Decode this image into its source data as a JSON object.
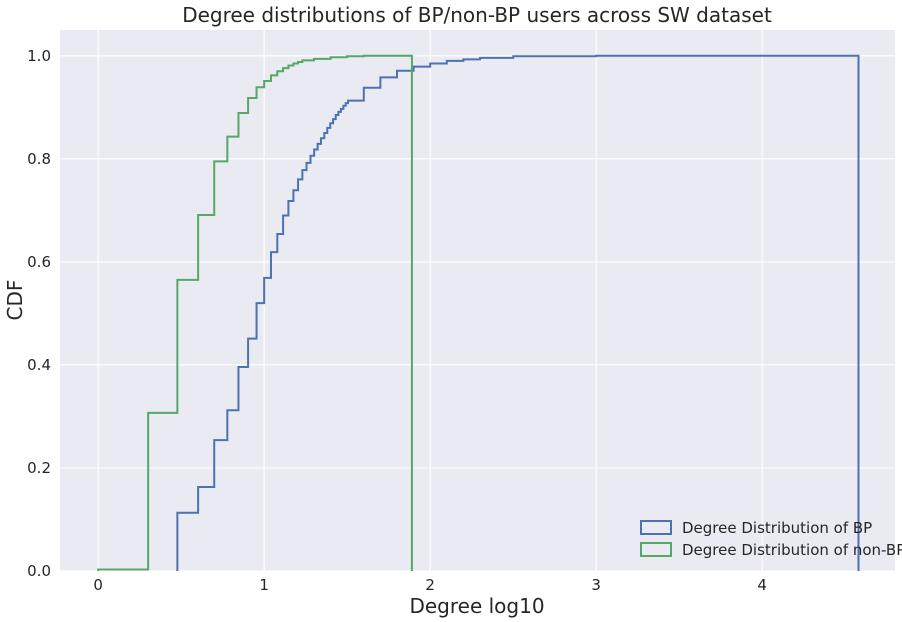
{
  "chart_data": {
    "type": "line",
    "title": "Degree distributions of BP/non-BP users across SW dataset",
    "xlabel": "Degree log10",
    "ylabel": "CDF",
    "xlim": [
      -0.23,
      4.8
    ],
    "ylim": [
      0,
      1.05
    ],
    "xticks": [
      0,
      1,
      2,
      3,
      4
    ],
    "yticks": [
      0.0,
      0.2,
      0.4,
      0.6,
      0.8,
      1.0
    ],
    "grid": true,
    "legend_position": "lower-right",
    "style": "step-histogram-cumulative",
    "series": [
      {
        "name": "Degree Distribution of BP",
        "color": "#4c72b0",
        "x": [
          0.477,
          0.602,
          0.699,
          0.778,
          0.845,
          0.903,
          0.954,
          1.0,
          1.041,
          1.079,
          1.114,
          1.146,
          1.176,
          1.204,
          1.23,
          1.255,
          1.279,
          1.301,
          1.322,
          1.342,
          1.362,
          1.38,
          1.398,
          1.415,
          1.431,
          1.447,
          1.462,
          1.477,
          1.491,
          1.505,
          1.6,
          1.7,
          1.8,
          1.9,
          2.0,
          2.1,
          2.2,
          2.3,
          2.5,
          3.0,
          4.58
        ],
        "y": [
          0.113,
          0.163,
          0.254,
          0.312,
          0.396,
          0.451,
          0.52,
          0.569,
          0.619,
          0.654,
          0.69,
          0.718,
          0.739,
          0.76,
          0.778,
          0.792,
          0.806,
          0.818,
          0.829,
          0.84,
          0.85,
          0.86,
          0.869,
          0.877,
          0.885,
          0.891,
          0.897,
          0.903,
          0.908,
          0.913,
          0.938,
          0.958,
          0.971,
          0.979,
          0.985,
          0.99,
          0.993,
          0.996,
          0.999,
          1.0,
          1.0
        ]
      },
      {
        "name": "Degree Distribution of non-BP",
        "color": "#55a868",
        "x": [
          0.0,
          0.301,
          0.477,
          0.602,
          0.699,
          0.778,
          0.845,
          0.903,
          0.954,
          1.0,
          1.041,
          1.079,
          1.114,
          1.146,
          1.176,
          1.204,
          1.23,
          1.3,
          1.4,
          1.5,
          1.6,
          1.7,
          1.8,
          1.89
        ],
        "y": [
          0.003,
          0.307,
          0.565,
          0.691,
          0.795,
          0.843,
          0.889,
          0.918,
          0.939,
          0.951,
          0.962,
          0.97,
          0.976,
          0.981,
          0.985,
          0.988,
          0.991,
          0.994,
          0.997,
          0.999,
          1.0,
          1.0,
          1.0,
          1.0
        ]
      }
    ]
  }
}
